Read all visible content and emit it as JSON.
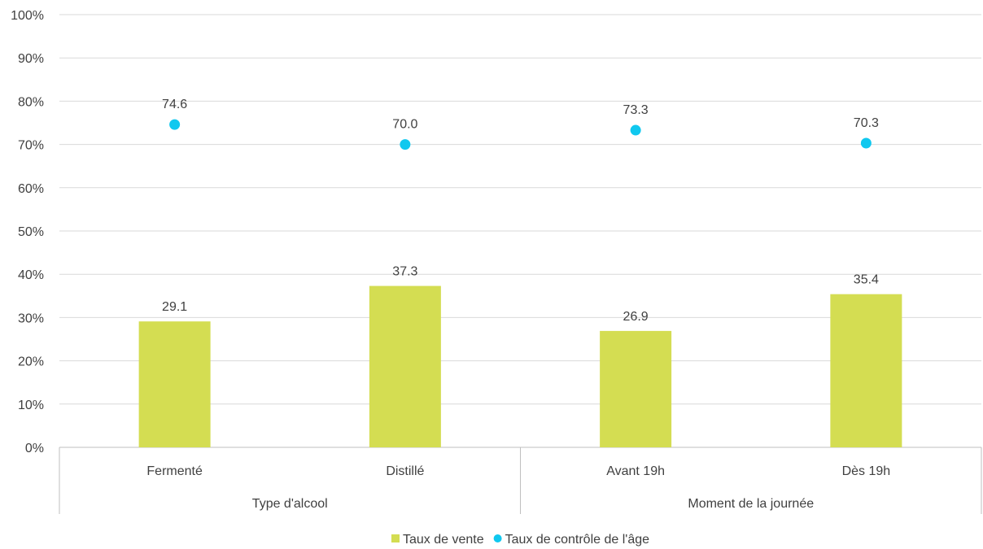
{
  "chart_data": {
    "type": "bar",
    "categories": [
      "Fermenté",
      "Distillé",
      "Avant 19h",
      "Dès 19h"
    ],
    "groups": [
      {
        "label": "Type d'alcool",
        "categories": [
          "Fermenté",
          "Distillé"
        ]
      },
      {
        "label": "Moment de la journée",
        "categories": [
          "Avant 19h",
          "Dès 19h"
        ]
      }
    ],
    "series": [
      {
        "name": "Taux de vente",
        "kind": "bar",
        "color": "#d4dd52",
        "values": [
          29.1,
          37.3,
          26.9,
          35.4
        ],
        "labels": [
          "29.1",
          "37.3",
          "26.9",
          "35.4"
        ]
      },
      {
        "name": "Taux de contrôle de l'âge",
        "kind": "scatter",
        "color": "#10c8ef",
        "values": [
          74.6,
          70.0,
          73.3,
          70.3
        ],
        "labels": [
          "74.6",
          "70.0",
          "73.3",
          "70.3"
        ]
      }
    ],
    "y_ticks": [
      "0%",
      "10%",
      "20%",
      "30%",
      "40%",
      "50%",
      "60%",
      "70%",
      "80%",
      "90%",
      "100%"
    ],
    "ylim": [
      0,
      100
    ],
    "grid": true,
    "legend_position": "bottom-center"
  }
}
